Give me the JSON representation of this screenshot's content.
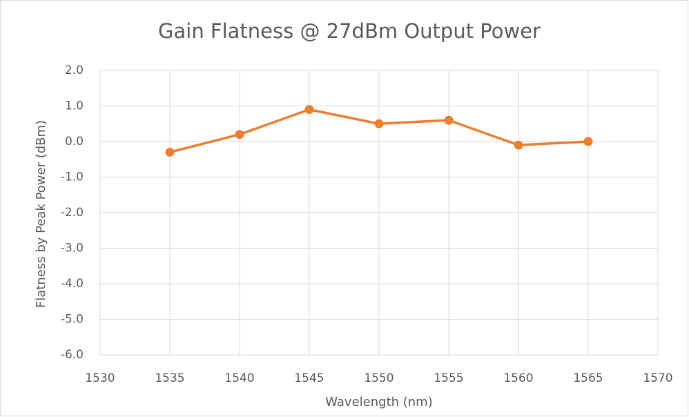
{
  "chart_data": {
    "type": "line",
    "title": "Gain Flatness @ 27dBm Output Power",
    "x_label": "Wavelength (nm)",
    "y_label": "Flatness by Peak Power (dBm)",
    "x": [
      1535,
      1540,
      1545,
      1550,
      1555,
      1560,
      1565
    ],
    "values": [
      -0.3,
      0.2,
      0.9,
      0.5,
      0.6,
      -0.1,
      0.0
    ],
    "color": "#ed7d31",
    "xlim": [
      1530,
      1570
    ],
    "xticks": [
      1530,
      1535,
      1540,
      1545,
      1550,
      1555,
      1560,
      1565,
      1570
    ],
    "ylim": [
      -6,
      2
    ],
    "yticks": [
      {
        "value": -6,
        "label": "-6.0"
      },
      {
        "value": -5,
        "label": "-5.0"
      },
      {
        "value": -4,
        "label": "-4.0"
      },
      {
        "value": -3,
        "label": "-3.0"
      },
      {
        "value": -2,
        "label": "-2.0"
      },
      {
        "value": -1,
        "label": "-1.0"
      },
      {
        "value": 0,
        "label": "0.0"
      },
      {
        "value": 1,
        "label": "1.0"
      },
      {
        "value": 2,
        "label": "2.0"
      }
    ],
    "grid": true,
    "markers": true
  }
}
